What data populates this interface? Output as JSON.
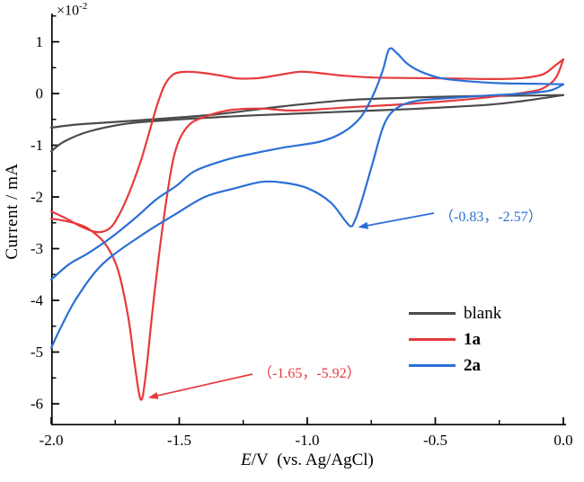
{
  "figure": {
    "background": "#ffffff"
  },
  "axes": {
    "x": {
      "label_italic": "E",
      "label_rest": "/V (vs. Ag/AgCl)",
      "ticks": [
        "-2.0",
        "-1.5",
        "-1.0",
        "-0.5",
        "0.0"
      ],
      "tick_values": [
        -2.0,
        -1.5,
        -1.0,
        -0.5,
        0.0
      ],
      "minor_values": [
        -1.75,
        -1.25,
        -0.75,
        -0.25
      ],
      "range": [
        -2.0,
        0.0
      ]
    },
    "y": {
      "label": "Current / mA",
      "scale_prefix": "×10",
      "scale_exponent": "-2",
      "ticks": [
        "1",
        "0",
        "-1",
        "-2",
        "-3",
        "-4",
        "-5",
        "-6"
      ],
      "tick_values": [
        1,
        0,
        -1,
        -2,
        -3,
        -4,
        -5,
        -6
      ],
      "minor_values": [
        1.5,
        0.5,
        -0.5,
        -1.5,
        -2.5,
        -3.5,
        -4.5,
        -5.5
      ],
      "range": [
        -6.4,
        1.5
      ]
    }
  },
  "chart_data": {
    "type": "line",
    "title": "",
    "xlabel": "E/V (vs. Ag/AgCl)",
    "ylabel": "Current / mA (x10^-2)",
    "xlim": [
      -2.0,
      0.0
    ],
    "ylim": [
      -6.4,
      1.5
    ],
    "grid": false,
    "legend_position": "lower right",
    "series": [
      {
        "name": "blank",
        "color": "#4b4b4b",
        "bold_label": false,
        "segments": {
          "forward": [
            [
              0,
              -0.03
            ],
            [
              -0.15,
              -0.14
            ],
            [
              -0.3,
              -0.22
            ],
            [
              -0.6,
              -0.3
            ],
            [
              -0.9,
              -0.36
            ],
            [
              -1.2,
              -0.42
            ],
            [
              -1.5,
              -0.5
            ],
            [
              -1.7,
              -0.58
            ],
            [
              -1.85,
              -0.73
            ],
            [
              -1.95,
              -0.93
            ],
            [
              -2.0,
              -1.12
            ]
          ],
          "return": [
            [
              -2.0,
              -0.66
            ],
            [
              -1.9,
              -0.6
            ],
            [
              -1.75,
              -0.55
            ],
            [
              -1.55,
              -0.48
            ],
            [
              -1.35,
              -0.4
            ],
            [
              -1.1,
              -0.25
            ],
            [
              -0.85,
              -0.13
            ],
            [
              -0.6,
              -0.08
            ],
            [
              -0.35,
              -0.05
            ],
            [
              -0.15,
              -0.04
            ],
            [
              0,
              -0.03
            ]
          ]
        }
      },
      {
        "name": "1a",
        "color": "#e63a3c",
        "bold_label": true,
        "segments": {
          "forward": [
            [
              0,
              0.66
            ],
            [
              -0.03,
              0.3
            ],
            [
              -0.08,
              0.1
            ],
            [
              -0.15,
              0.02
            ],
            [
              -0.35,
              -0.1
            ],
            [
              -0.6,
              -0.2
            ],
            [
              -0.85,
              -0.27
            ],
            [
              -1.05,
              -0.33
            ],
            [
              -1.18,
              -0.29
            ],
            [
              -1.3,
              -0.32
            ],
            [
              -1.4,
              -0.45
            ],
            [
              -1.47,
              -0.65
            ],
            [
              -1.52,
              -1.2
            ],
            [
              -1.56,
              -2.4
            ],
            [
              -1.6,
              -4.0
            ],
            [
              -1.63,
              -5.4
            ],
            [
              -1.65,
              -5.92
            ],
            [
              -1.675,
              -5.2
            ],
            [
              -1.7,
              -4.3
            ],
            [
              -1.74,
              -3.4
            ],
            [
              -1.79,
              -2.9
            ],
            [
              -1.86,
              -2.6
            ],
            [
              -1.93,
              -2.48
            ],
            [
              -2.0,
              -2.42
            ]
          ],
          "return": [
            [
              -2.0,
              -2.28
            ],
            [
              -1.94,
              -2.42
            ],
            [
              -1.88,
              -2.58
            ],
            [
              -1.82,
              -2.68
            ],
            [
              -1.77,
              -2.6
            ],
            [
              -1.73,
              -2.3
            ],
            [
              -1.69,
              -1.85
            ],
            [
              -1.65,
              -1.3
            ],
            [
              -1.62,
              -0.8
            ],
            [
              -1.585,
              -0.2
            ],
            [
              -1.555,
              0.18
            ],
            [
              -1.52,
              0.38
            ],
            [
              -1.47,
              0.42
            ],
            [
              -1.41,
              0.4
            ],
            [
              -1.34,
              0.35
            ],
            [
              -1.27,
              0.29
            ],
            [
              -1.19,
              0.3
            ],
            [
              -1.11,
              0.36
            ],
            [
              -1.03,
              0.42
            ],
            [
              -0.96,
              0.4
            ],
            [
              -0.87,
              0.35
            ],
            [
              -0.74,
              0.31
            ],
            [
              -0.58,
              0.3
            ],
            [
              -0.42,
              0.29
            ],
            [
              -0.27,
              0.28
            ],
            [
              -0.16,
              0.3
            ],
            [
              -0.08,
              0.37
            ],
            [
              -0.03,
              0.55
            ],
            [
              0,
              0.66
            ]
          ]
        }
      },
      {
        "name": "2a",
        "color": "#2c6fd6",
        "bold_label": true,
        "segments": {
          "forward": [
            [
              0,
              0.18
            ],
            [
              -0.05,
              0.06
            ],
            [
              -0.15,
              0.0
            ],
            [
              -0.3,
              -0.04
            ],
            [
              -0.45,
              -0.09
            ],
            [
              -0.57,
              -0.14
            ],
            [
              -0.65,
              -0.28
            ],
            [
              -0.7,
              -0.6
            ],
            [
              -0.745,
              -1.35
            ],
            [
              -0.79,
              -2.12
            ],
            [
              -0.815,
              -2.47
            ],
            [
              -0.83,
              -2.57
            ],
            [
              -0.855,
              -2.44
            ],
            [
              -0.91,
              -2.1
            ],
            [
              -1.0,
              -1.83
            ],
            [
              -1.1,
              -1.72
            ],
            [
              -1.18,
              -1.71
            ],
            [
              -1.28,
              -1.83
            ],
            [
              -1.4,
              -2.0
            ],
            [
              -1.52,
              -2.35
            ],
            [
              -1.65,
              -2.75
            ],
            [
              -1.8,
              -3.3
            ],
            [
              -1.9,
              -3.95
            ],
            [
              -1.96,
              -4.5
            ],
            [
              -2.0,
              -4.92
            ]
          ],
          "return": [
            [
              -2.0,
              -3.6
            ],
            [
              -1.93,
              -3.3
            ],
            [
              -1.86,
              -3.1
            ],
            [
              -1.77,
              -2.8
            ],
            [
              -1.67,
              -2.4
            ],
            [
              -1.59,
              -2.05
            ],
            [
              -1.51,
              -1.78
            ],
            [
              -1.44,
              -1.5
            ],
            [
              -1.33,
              -1.3
            ],
            [
              -1.25,
              -1.2
            ],
            [
              -1.1,
              -1.05
            ],
            [
              -0.95,
              -0.93
            ],
            [
              -0.86,
              -0.75
            ],
            [
              -0.79,
              -0.45
            ],
            [
              -0.74,
              0.0
            ],
            [
              -0.705,
              0.45
            ],
            [
              -0.68,
              0.86
            ],
            [
              -0.65,
              0.78
            ],
            [
              -0.61,
              0.58
            ],
            [
              -0.555,
              0.42
            ],
            [
              -0.48,
              0.3
            ],
            [
              -0.38,
              0.24
            ],
            [
              -0.25,
              0.2
            ],
            [
              -0.12,
              0.19
            ],
            [
              0,
              0.18
            ]
          ]
        }
      }
    ],
    "annotations": [
      {
        "text": "（-1.65，-5.92）",
        "x": -1.65,
        "y": -5.92,
        "color": "#e63a3c"
      },
      {
        "text": "（-0.83，-2.57）",
        "x": -0.83,
        "y": -2.57,
        "color": "#2c6fd6"
      }
    ]
  },
  "legend": {
    "items": [
      {
        "label": "blank"
      },
      {
        "label": "1a"
      },
      {
        "label": "2a"
      }
    ]
  }
}
